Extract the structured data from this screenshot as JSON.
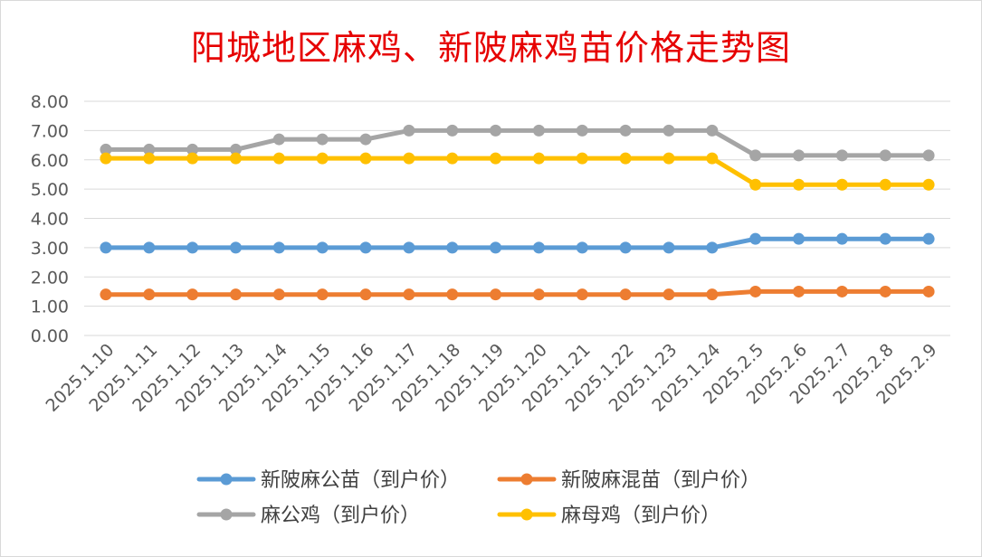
{
  "chart_data": {
    "type": "line",
    "title": "阳城地区麻鸡、新陂麻鸡苗价格走势图",
    "categories": [
      "2025.1.10",
      "2025.1.11",
      "2025.1.12",
      "2025.1.13",
      "2025.1.14",
      "2025.1.15",
      "2025.1.16",
      "2025.1.17",
      "2025.1.18",
      "2025.1.19",
      "2025.1.20",
      "2025.1.21",
      "2025.1.22",
      "2025.1.23",
      "2025.1.24",
      "2025.2.5",
      "2025.2.6",
      "2025.2.7",
      "2025.2.8",
      "2025.2.9"
    ],
    "ylim": [
      0,
      8
    ],
    "yticks": [
      "0.00",
      "1.00",
      "2.00",
      "3.00",
      "4.00",
      "5.00",
      "6.00",
      "7.00",
      "8.00"
    ],
    "grid": true,
    "legend_position": "bottom",
    "series": [
      {
        "name": "新陂麻公苗（到户价）",
        "color": "#5b9bd5",
        "values": [
          3.0,
          3.0,
          3.0,
          3.0,
          3.0,
          3.0,
          3.0,
          3.0,
          3.0,
          3.0,
          3.0,
          3.0,
          3.0,
          3.0,
          3.0,
          3.3,
          3.3,
          3.3,
          3.3,
          3.3
        ]
      },
      {
        "name": "新陂麻混苗（到户价）",
        "color": "#ed7d31",
        "values": [
          1.4,
          1.4,
          1.4,
          1.4,
          1.4,
          1.4,
          1.4,
          1.4,
          1.4,
          1.4,
          1.4,
          1.4,
          1.4,
          1.4,
          1.4,
          1.5,
          1.5,
          1.5,
          1.5,
          1.5
        ]
      },
      {
        "name": "麻公鸡（到户价）",
        "color": "#a5a5a5",
        "values": [
          6.35,
          6.35,
          6.35,
          6.35,
          6.7,
          6.7,
          6.7,
          7.0,
          7.0,
          7.0,
          7.0,
          7.0,
          7.0,
          7.0,
          7.0,
          6.15,
          6.15,
          6.15,
          6.15,
          6.15
        ]
      },
      {
        "name": "麻母鸡（到户价）",
        "color": "#ffc000",
        "values": [
          6.05,
          6.05,
          6.05,
          6.05,
          6.05,
          6.05,
          6.05,
          6.05,
          6.05,
          6.05,
          6.05,
          6.05,
          6.05,
          6.05,
          6.05,
          5.15,
          5.15,
          5.15,
          5.15,
          5.15
        ]
      }
    ]
  }
}
